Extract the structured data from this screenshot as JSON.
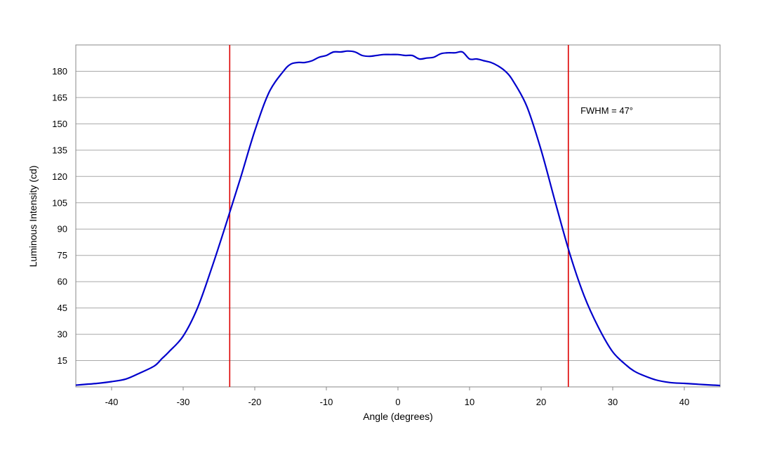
{
  "chart_data": {
    "type": "line",
    "title": "",
    "xlabel": "Angle (degrees)",
    "ylabel": "Luminous Intensity (cd)",
    "xlim": [
      -45,
      45
    ],
    "ylim": [
      0,
      195
    ],
    "x_ticks": [
      -40,
      -30,
      -20,
      -10,
      0,
      10,
      20,
      30,
      40
    ],
    "x_tick_labels": [
      "-40",
      "-30",
      "-20",
      "-10",
      "0",
      "10",
      "20",
      "30",
      "40"
    ],
    "y_ticks": [
      15,
      30,
      45,
      60,
      75,
      90,
      105,
      120,
      135,
      150,
      165,
      180
    ],
    "y_tick_labels": [
      "15",
      "30",
      "45",
      "60",
      "75",
      "90",
      "105",
      "120",
      "135",
      "150",
      "165",
      "180"
    ],
    "grid": "horizontal",
    "legend": "none",
    "series": [
      {
        "color": "#0000cc",
        "x": [
          -45,
          -42,
          -40,
          -38,
          -36,
          -34,
          -33,
          -32,
          -30,
          -28,
          -26,
          -24,
          -22,
          -20,
          -18,
          -16,
          -15,
          -14,
          -13,
          -12,
          -11,
          -10,
          -9,
          -8,
          -7,
          -6,
          -5,
          -4,
          -3,
          -2,
          -1,
          0,
          1,
          2,
          3,
          4,
          5,
          6,
          7,
          8,
          9,
          10,
          11,
          12,
          13,
          14,
          15,
          16,
          18,
          20,
          22,
          24,
          26,
          28,
          30,
          32,
          33,
          34,
          36,
          38,
          40,
          42,
          44,
          45
        ],
        "y": [
          1,
          2,
          3,
          4.5,
          8,
          12,
          16,
          20,
          29,
          45,
          68,
          93,
          119,
          146,
          168,
          180,
          184,
          185,
          185,
          186,
          188,
          189,
          191,
          191,
          191.5,
          191,
          189,
          188.5,
          189,
          189.5,
          189.5,
          189.5,
          189,
          189,
          187,
          187.5,
          188,
          190,
          190.5,
          190.5,
          191,
          187,
          187,
          186,
          185,
          183,
          180,
          175,
          160,
          135,
          105,
          76,
          52,
          34,
          20,
          12,
          9,
          7,
          4,
          2.5,
          2,
          1.5,
          1,
          0.8
        ]
      }
    ],
    "vertical_lines": [
      {
        "x": -23.5,
        "color": "#dd0000"
      },
      {
        "x": 23.8,
        "color": "#dd0000"
      }
    ],
    "annotations": [
      {
        "text": "FWHM = 47°",
        "x": 25.5,
        "y": 157.5
      }
    ]
  }
}
